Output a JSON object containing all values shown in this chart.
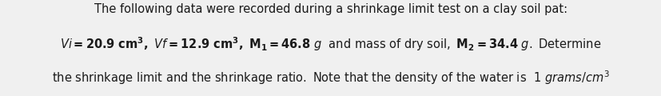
{
  "background_color": "#f0f0f0",
  "content_bg": "#ffffff",
  "line1": "The following data were recorded during a shrinkage limit test on a clay soil pat:",
  "line3": "the shrinkage limit and the shrinkage ratio. Note that the density of the water is  1 ",
  "fontsize": 10.5,
  "text_color": "#1a1a1a",
  "fig_width": 8.28,
  "fig_height": 1.2,
  "dpi": 100
}
